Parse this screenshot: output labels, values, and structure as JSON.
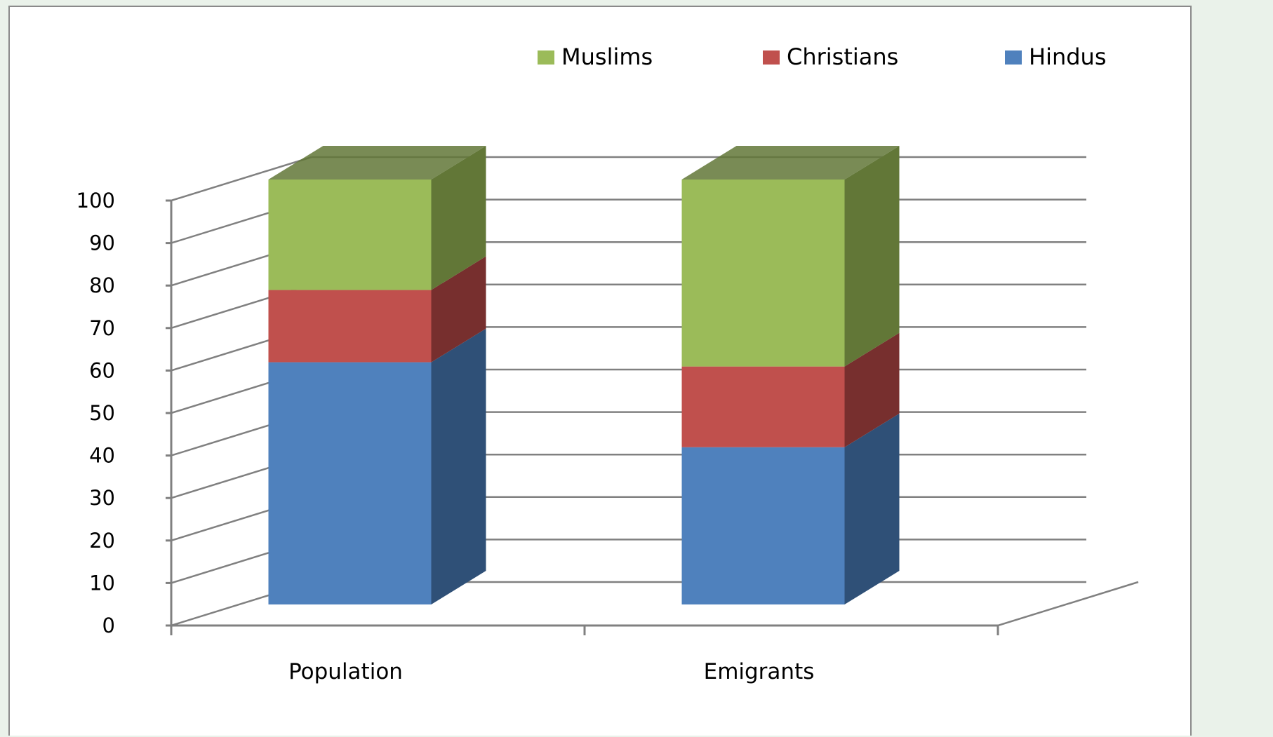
{
  "chart_data": {
    "type": "bar",
    "stacked": true,
    "three_d": true,
    "title": "",
    "xlabel": "",
    "ylabel": "",
    "categories": [
      "Population",
      "Emigrants"
    ],
    "series": [
      {
        "name": "Hindus",
        "values": [
          57,
          37
        ],
        "color": "#4f81bd",
        "side_color": "#2f5077"
      },
      {
        "name": "Christians",
        "values": [
          17,
          19
        ],
        "color": "#c0504d",
        "side_color": "#772f2e"
      },
      {
        "name": "Muslims",
        "values": [
          26,
          44
        ],
        "color": "#9bbb59",
        "side_color": "#627737"
      }
    ],
    "ylim": [
      0,
      100
    ],
    "yticks": [
      "0",
      "10",
      "20",
      "30",
      "40",
      "50",
      "60",
      "70",
      "80",
      "90",
      "100"
    ],
    "grid": true,
    "legend_position": "top-right",
    "legend_order": [
      "Muslims",
      "Christians",
      "Hindus"
    ],
    "colors": {
      "gridline": "#808080",
      "axis": "#808080",
      "background": "#ffffff",
      "frame": "#eaf2ea"
    }
  }
}
